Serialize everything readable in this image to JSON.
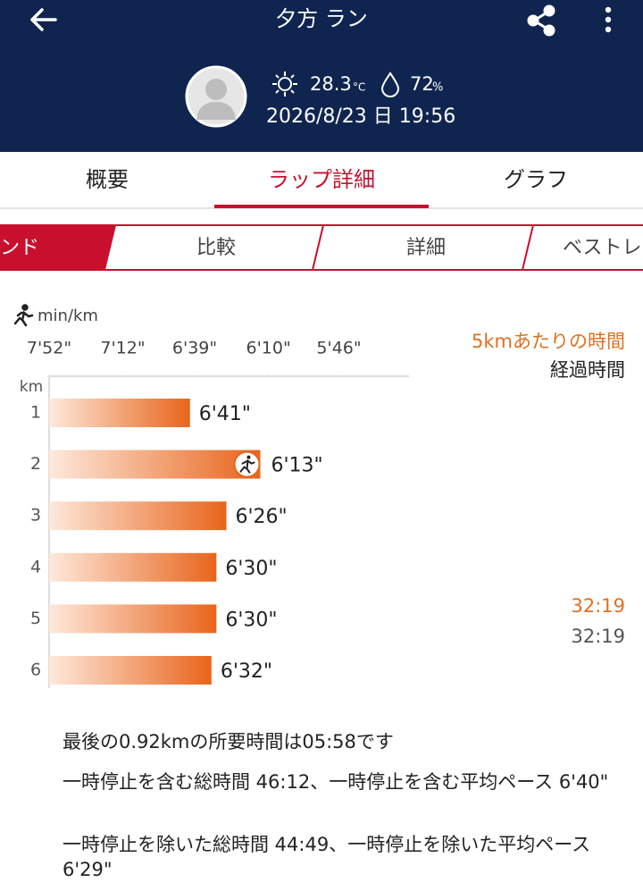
{
  "header": {
    "title": "夕方 ラン",
    "temperature": "28.3",
    "temperature_unit": "°C",
    "humidity": "72",
    "humidity_unit": "%",
    "datetime": "2026/8/23 日 19:56"
  },
  "tabs": {
    "items": [
      "概要",
      "ラップ詳細",
      "グラフ"
    ],
    "active": 1
  },
  "sub_tabs": {
    "items": [
      "ンド",
      "比較",
      "詳細",
      "ベストレ"
    ],
    "active": 0
  },
  "chart": {
    "type": "bar",
    "unit_label": "min/km",
    "row_axis_label": "km",
    "categories": [
      "1",
      "2",
      "3",
      "4",
      "5",
      "6"
    ],
    "values": [
      401,
      373,
      386,
      390,
      390,
      392
    ],
    "value_labels": [
      "6'41\"",
      "6'13\"",
      "6'26\"",
      "6'30\"",
      "6'30\"",
      "6'32\""
    ],
    "xticks": [
      {
        "value": 472,
        "label": "7'52\""
      },
      {
        "value": 432,
        "label": "7'12\""
      },
      {
        "value": 399,
        "label": "6'39\""
      },
      {
        "value": 370,
        "label": "6'10\""
      },
      {
        "value": 346,
        "label": "5'46\""
      }
    ],
    "xlim": [
      472,
      325
    ],
    "scale": "reciprocal",
    "color": "#e8641c"
  },
  "side": {
    "split_title": "5kmあたりの時間",
    "elapsed_title": "経過時間",
    "split_value": "32:19",
    "elapsed_value": "32:19"
  },
  "notes": [
    "最後の0.92kmの所要時間は05:58です",
    "一時停止を含む総時間 46:12、一時停止を含む平均ペース 6'40\"",
    "一時停止を除いた総時間 44:49、一時停止を除いた平均ペース 6'29\""
  ]
}
